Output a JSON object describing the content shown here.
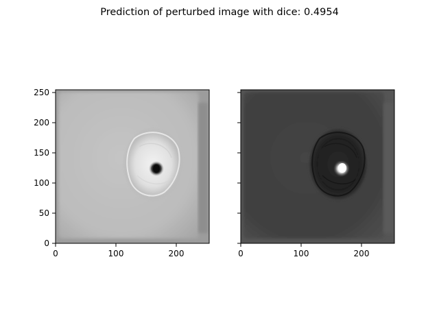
{
  "figure": {
    "title": "Prediction of perturbed image with dice: 0.4954"
  },
  "chart_data": [
    {
      "type": "heatmap",
      "panel": "left",
      "colormap": "gray",
      "image_description_values": "mostly light-gray square field with a bright ring-shaped lesion around (170,120) and a dark core",
      "xlim": [
        0,
        255
      ],
      "ylim": [
        0,
        255
      ],
      "x_ticks": [
        0,
        100,
        200
      ],
      "y_ticks": [
        0,
        50,
        100,
        150,
        200,
        250
      ],
      "show_y_tick_labels": true
    },
    {
      "type": "heatmap",
      "panel": "right",
      "colormap": "gray",
      "image_description_values": "mostly dark-gray square field with a dark outlined lesion around (170,120) and a bright core",
      "xlim": [
        0,
        255
      ],
      "ylim": [
        0,
        255
      ],
      "x_ticks": [
        0,
        100,
        200
      ],
      "y_ticks": [
        0,
        50,
        100,
        150,
        200,
        250
      ],
      "show_y_tick_labels": false
    }
  ]
}
